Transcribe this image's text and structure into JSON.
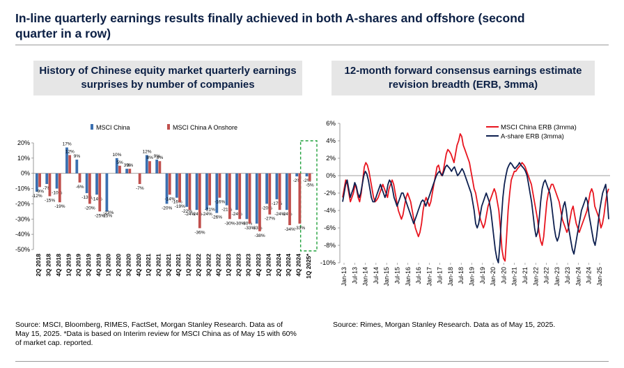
{
  "title": "In-line quarterly earnings results finally achieved in both A-shares and offshore (second quarter in a row)",
  "left_panel": {
    "header": "History of Chinese equity market quarterly earnings surprises by number of companies",
    "source": "Source: MSCI, Bloomberg, RIMES, FactSet, Morgan Stanley Research. Data as of May 15, 2025. *Data is based on Interim review for MSCI China as of May 15 with 60% of market cap. reported."
  },
  "right_panel": {
    "header": "12-month forward consensus earnings estimate revision breadth (ERB, 3mma)",
    "source": "Source: Rimes, Morgan Stanley Research. Data as of May 15, 2025."
  },
  "chart_data": [
    {
      "type": "bar",
      "categories": [
        "2Q 2018",
        "3Q 2018",
        "4Q 2018",
        "1Q 2019",
        "2Q 2019",
        "3Q 2019",
        "4Q 2019",
        "1Q 2020",
        "2Q 2020",
        "3Q 2020",
        "4Q 2020",
        "1Q 2021",
        "2Q 2021",
        "3Q 2021",
        "4Q 2021",
        "1Q 2022",
        "2Q 2022",
        "3Q 2022",
        "4Q 2022",
        "1Q 2023",
        "2Q 2023",
        "3Q 2023",
        "4Q 2023",
        "1Q 2024",
        "2Q 2024",
        "3Q 2024",
        "4Q 2024",
        "1Q 2025*"
      ],
      "series": [
        {
          "name": "MSCI China",
          "color": "#3a6fb0",
          "values": [
            -12,
            -7,
            -10,
            17,
            9,
            -13,
            -14,
            -25,
            10,
            3,
            null,
            12,
            9,
            -20,
            -16,
            -22,
            -24,
            -24,
            -26,
            -21,
            -24,
            -30,
            -33,
            -20,
            -17,
            -24,
            -2,
            -2
          ],
          "labels": [
            "-12%",
            "-7%",
            "-10%",
            "17%",
            "9%",
            "-13%",
            "-14%",
            "-25%",
            "10%",
            "3%",
            "",
            "12%",
            "9%",
            "-20%",
            "-16%",
            "-22%",
            "-24%",
            "-24%",
            "-26%",
            "-21%",
            "-24%",
            "-30%",
            "-33%",
            "-20%",
            "-17%",
            "-24%",
            "-2%",
            "-2%"
          ]
        },
        {
          "name": "MSCI China A Onshore",
          "color": "#c0504d",
          "values": [
            -9,
            -15,
            -19,
            12,
            -6,
            -20,
            -25,
            null,
            5,
            3,
            -7,
            8,
            8,
            -14,
            -19,
            -24,
            -36,
            -21,
            -16,
            -30,
            -30,
            -33,
            -38,
            -27,
            -24,
            -34,
            -33,
            -5
          ],
          "labels": [
            "-9%",
            "-15%",
            "-19%",
            "12%",
            "-6%",
            "-20%",
            "-25%",
            "",
            "5%",
            "3%",
            "-7%",
            "8%",
            "8%",
            "-14%",
            "-19%",
            "-24%",
            "-36%",
            "-21%",
            "-16%",
            "-30%",
            "-30%",
            "-33%",
            "-38%",
            "-27%",
            "-24%",
            "-34%",
            "-33%",
            "-5%"
          ]
        }
      ],
      "extra_labels": [
        {
          "category": "1Q 2020",
          "text": "-23%",
          "value": -23
        }
      ],
      "ylim": [
        -50,
        20
      ],
      "yticks": [
        -50,
        -40,
        -30,
        -20,
        -10,
        0,
        10,
        20
      ],
      "ytick_labels": [
        "-50%",
        "-40%",
        "-30%",
        "-20%",
        "-10%",
        "0%",
        "10%",
        "20%"
      ],
      "legend_position": "top-left",
      "highlight": {
        "category": "1Q 2025*",
        "color": "#1fa03a",
        "style": "dashed"
      }
    },
    {
      "type": "line",
      "x_start": "Jan-13",
      "x_end": "May-25",
      "xtick_labels": [
        "Jan-13",
        "Jul-13",
        "Jan-14",
        "Jul-14",
        "Jan-15",
        "Jul-15",
        "Jan-16",
        "Jul-16",
        "Jan-17",
        "Jul-17",
        "Jan-18",
        "Jul-18",
        "Jan-19",
        "Jul-19",
        "Jan-20",
        "Jul-20",
        "Jan-21",
        "Jul-21",
        "Jan-22",
        "Jul-22",
        "Jan-23",
        "Jul-23",
        "Jan-24",
        "Jul-24",
        "Jan-25"
      ],
      "ylim": [
        -10,
        6
      ],
      "yticks": [
        -10,
        -8,
        -6,
        -4,
        -2,
        0,
        2,
        4,
        6
      ],
      "ytick_labels": [
        "-10%",
        "-8%",
        "-6%",
        "-4%",
        "-2%",
        "0%",
        "2%",
        "4%",
        "6%"
      ],
      "legend_position": "top-right",
      "series": [
        {
          "name": "MSCI China ERB (3mma)",
          "color": "#e8141e",
          "values": [
            -2.5,
            -1.5,
            -0.5,
            -1.0,
            -2.0,
            -3.0,
            -2.5,
            -2.0,
            -1.0,
            -1.5,
            -2.5,
            -3.0,
            -2.0,
            -0.5,
            1.0,
            1.5,
            1.2,
            0.5,
            -0.5,
            -1.5,
            -2.5,
            -3.0,
            -2.8,
            -2.5,
            -2.0,
            -1.5,
            -1.0,
            -1.5,
            -2.0,
            -2.5,
            -1.5,
            -1.0,
            -0.5,
            -1.0,
            -2.0,
            -3.0,
            -4.0,
            -4.5,
            -5.0,
            -4.5,
            -3.5,
            -2.5,
            -2.0,
            -2.5,
            -3.0,
            -4.0,
            -5.0,
            -6.0,
            -6.5,
            -7.0,
            -6.5,
            -5.5,
            -4.0,
            -3.0,
            -2.5,
            -3.0,
            -3.5,
            -3.0,
            -2.0,
            -1.0,
            0.0,
            1.0,
            1.2,
            0.5,
            0.0,
            0.5,
            1.5,
            2.5,
            3.0,
            2.8,
            2.5,
            2.0,
            1.5,
            2.5,
            3.5,
            4.0,
            4.8,
            4.5,
            3.5,
            3.0,
            2.5,
            2.0,
            1.5,
            0.5,
            -0.5,
            -1.5,
            -2.0,
            -3.0,
            -4.0,
            -5.0,
            -5.5,
            -6.0,
            -5.5,
            -4.5,
            -3.5,
            -3.0,
            -2.5,
            -2.0,
            -1.5,
            -2.0,
            -3.0,
            -4.0,
            -6.0,
            -8.5,
            -9.5,
            -9.8,
            -7.0,
            -4.0,
            -2.0,
            -0.5,
            0.0,
            0.5,
            0.5,
            0.8,
            1.0,
            1.2,
            1.5,
            1.3,
            1.0,
            0.5,
            0.0,
            -0.5,
            -1.0,
            -2.0,
            -3.0,
            -4.0,
            -5.0,
            -6.5,
            -7.5,
            -8.0,
            -7.0,
            -5.0,
            -3.0,
            -2.0,
            -1.5,
            -1.0,
            -1.0,
            -1.5,
            -2.0,
            -2.5,
            -3.0,
            -4.0,
            -5.0,
            -5.5,
            -6.0,
            -6.5,
            -6.0,
            -5.0,
            -4.0,
            -3.5,
            -4.5,
            -5.5,
            -6.0,
            -6.5,
            -6.0,
            -5.5,
            -5.0,
            -4.5,
            -4.0,
            -3.0,
            -2.0,
            -1.5,
            -2.0,
            -3.5,
            -4.0,
            -4.5,
            -5.0,
            -6.0,
            -5.5,
            -4.5,
            -3.0,
            -2.0,
            -1.5
          ]
        },
        {
          "name": "A-share ERB (3mma)",
          "color": "#0d1f4f",
          "values": [
            -3.0,
            -2.0,
            -1.0,
            -0.5,
            -1.5,
            -2.5,
            -2.0,
            -1.5,
            -0.8,
            -1.2,
            -2.0,
            -2.5,
            -2.0,
            -1.0,
            0.0,
            0.5,
            0.2,
            -0.5,
            -1.5,
            -2.5,
            -3.0,
            -3.0,
            -2.5,
            -2.0,
            -1.5,
            -1.0,
            -1.5,
            -2.0,
            -2.5,
            -2.0,
            -1.0,
            -0.5,
            -0.8,
            -1.5,
            -2.5,
            -3.0,
            -3.5,
            -3.0,
            -2.5,
            -2.0,
            -2.0,
            -2.5,
            -3.0,
            -3.5,
            -4.0,
            -4.5,
            -5.0,
            -5.5,
            -5.0,
            -4.5,
            -4.0,
            -3.5,
            -3.0,
            -2.8,
            -3.0,
            -3.5,
            -3.0,
            -2.5,
            -2.0,
            -1.5,
            -1.0,
            -0.5,
            0.0,
            0.3,
            0.5,
            0.2,
            0.0,
            0.5,
            1.0,
            1.2,
            1.0,
            0.8,
            0.5,
            0.8,
            1.0,
            0.5,
            0.0,
            0.2,
            0.5,
            0.8,
            0.5,
            0.0,
            -0.5,
            -1.0,
            -1.5,
            -2.0,
            -3.0,
            -4.0,
            -5.5,
            -6.0,
            -5.5,
            -4.5,
            -3.5,
            -3.0,
            -2.5,
            -2.0,
            -2.5,
            -3.0,
            -4.0,
            -5.5,
            -7.0,
            -8.5,
            -9.5,
            -10.0,
            -8.0,
            -5.0,
            -2.5,
            -1.0,
            0.0,
            0.8,
            1.2,
            1.5,
            1.3,
            1.0,
            0.8,
            1.0,
            1.2,
            1.5,
            1.2,
            1.0,
            0.8,
            0.5,
            0.0,
            -1.0,
            -2.0,
            -3.0,
            -4.5,
            -6.0,
            -7.0,
            -6.5,
            -5.0,
            -3.0,
            -1.5,
            -0.8,
            -0.5,
            -1.0,
            -1.5,
            -2.0,
            -3.0,
            -4.5,
            -6.0,
            -7.0,
            -7.5,
            -7.0,
            -6.0,
            -4.5,
            -3.5,
            -3.0,
            -4.0,
            -5.5,
            -6.5,
            -7.5,
            -8.5,
            -9.0,
            -8.0,
            -7.0,
            -6.0,
            -5.0,
            -4.0,
            -3.5,
            -3.0,
            -2.5,
            -3.0,
            -4.5,
            -5.5,
            -6.5,
            -7.5,
            -8.0,
            -7.0,
            -5.5,
            -4.0,
            -3.0,
            -2.0,
            -1.5,
            -1.0,
            -2.5,
            -5.0
          ]
        }
      ]
    }
  ]
}
